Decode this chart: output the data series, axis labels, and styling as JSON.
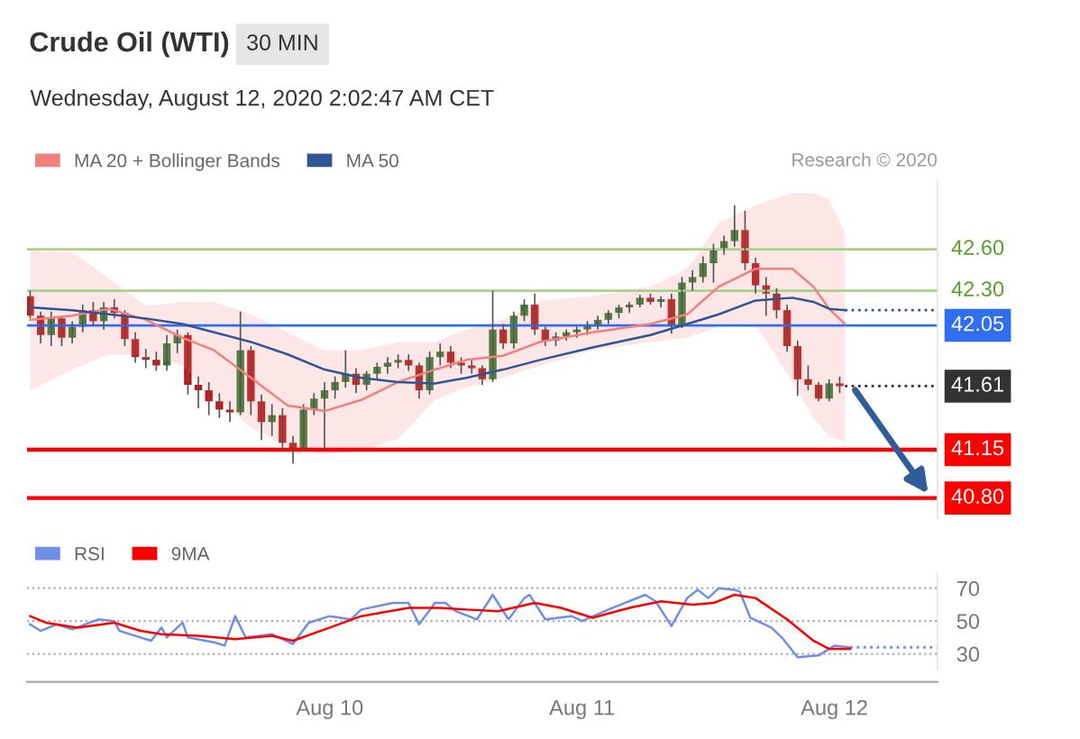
{
  "chart_data": [
    {
      "type": "candlestick",
      "title": "Crude Oil (WTI)",
      "subtitle": "30 MIN",
      "annotations": [
        "Wednesday, August 12, 2020 2:02:47 AM CET",
        "Research © 2020"
      ],
      "x": [
        "2020-08-08T19:30",
        "2020-08-08T20:30",
        "2020-08-08T21:30",
        "2020-08-08T22:30",
        "2020-08-08T23:30",
        "2020-08-09T00:30",
        "2020-08-09T01:30",
        "2020-08-09T02:30",
        "2020-08-09T03:30",
        "2020-08-09T04:30",
        "2020-08-09T05:30",
        "2020-08-09T06:30",
        "2020-08-09T07:30",
        "2020-08-09T08:30",
        "2020-08-09T09:30",
        "2020-08-09T10:30",
        "2020-08-09T11:30",
        "2020-08-09T12:30",
        "2020-08-09T13:30",
        "2020-08-09T14:30",
        "2020-08-09T15:30",
        "2020-08-09T16:30",
        "2020-08-09T17:30",
        "2020-08-09T18:30",
        "2020-08-09T19:30",
        "2020-08-09T20:30",
        "2020-08-09T21:30",
        "2020-08-09T22:30",
        "2020-08-09T23:30",
        "2020-08-10T00:30",
        "2020-08-10T01:30",
        "2020-08-10T02:30",
        "2020-08-10T03:30",
        "2020-08-10T04:30",
        "2020-08-10T05:30",
        "2020-08-10T06:30",
        "2020-08-10T07:30",
        "2020-08-10T08:30",
        "2020-08-10T09:30",
        "2020-08-10T10:30",
        "2020-08-10T11:30",
        "2020-08-10T12:30",
        "2020-08-10T13:30",
        "2020-08-10T14:30",
        "2020-08-10T15:30",
        "2020-08-10T16:30",
        "2020-08-10T17:30",
        "2020-08-10T18:30",
        "2020-08-10T19:30",
        "2020-08-10T20:30",
        "2020-08-10T21:30",
        "2020-08-10T22:30",
        "2020-08-10T23:30",
        "2020-08-11T00:30",
        "2020-08-11T01:30",
        "2020-08-11T02:30",
        "2020-08-11T03:30",
        "2020-08-11T04:30",
        "2020-08-11T05:30",
        "2020-08-11T06:30",
        "2020-08-11T07:30",
        "2020-08-11T08:30",
        "2020-08-11T09:30",
        "2020-08-11T10:30",
        "2020-08-11T11:30",
        "2020-08-11T12:30",
        "2020-08-11T13:30",
        "2020-08-11T14:30",
        "2020-08-11T15:30",
        "2020-08-11T16:30",
        "2020-08-11T17:30",
        "2020-08-11T18:30",
        "2020-08-11T19:30",
        "2020-08-11T20:30",
        "2020-08-11T21:30",
        "2020-08-11T22:30",
        "2020-08-11T23:30",
        "2020-08-12T00:30"
      ],
      "ohlc": [
        [
          42.26,
          42.3,
          42.1,
          42.12
        ],
        [
          42.12,
          42.15,
          41.92,
          41.98
        ],
        [
          41.98,
          42.15,
          41.9,
          42.1
        ],
        [
          42.1,
          42.12,
          41.9,
          41.96
        ],
        [
          41.96,
          42.08,
          41.92,
          42.04
        ],
        [
          42.04,
          42.2,
          42.0,
          42.16
        ],
        [
          42.16,
          42.22,
          42.05,
          42.08
        ],
        [
          42.08,
          42.22,
          42.02,
          42.18
        ],
        [
          42.18,
          42.24,
          42.1,
          42.14
        ],
        [
          42.14,
          42.16,
          41.9,
          41.95
        ],
        [
          41.95,
          42.0,
          41.78,
          41.82
        ],
        [
          41.82,
          41.88,
          41.74,
          41.8
        ],
        [
          41.8,
          41.86,
          41.72,
          41.76
        ],
        [
          41.76,
          41.98,
          41.72,
          41.92
        ],
        [
          41.92,
          42.02,
          41.85,
          41.98
        ],
        [
          41.98,
          42.0,
          41.55,
          41.62
        ],
        [
          41.62,
          41.68,
          41.45,
          41.58
        ],
        [
          41.58,
          41.64,
          41.4,
          41.5
        ],
        [
          41.5,
          41.56,
          41.38,
          41.44
        ],
        [
          41.44,
          41.5,
          41.35,
          41.42
        ],
        [
          41.42,
          42.15,
          41.4,
          41.87
        ],
        [
          41.87,
          41.9,
          41.4,
          41.5
        ],
        [
          41.5,
          41.55,
          41.22,
          41.35
        ],
        [
          41.35,
          41.48,
          41.25,
          41.4
        ],
        [
          41.4,
          41.45,
          41.15,
          41.2
        ],
        [
          41.2,
          41.25,
          41.05,
          41.15
        ],
        [
          41.15,
          41.48,
          41.14,
          41.44
        ],
        [
          41.44,
          41.56,
          41.4,
          41.52
        ],
        [
          41.52,
          41.64,
          41.15,
          41.58
        ],
        [
          41.58,
          41.68,
          41.52,
          41.64
        ],
        [
          41.64,
          41.87,
          41.6,
          41.7
        ],
        [
          41.7,
          41.74,
          41.56,
          41.62
        ],
        [
          41.62,
          41.72,
          41.58,
          41.7
        ],
        [
          41.7,
          41.78,
          41.66,
          41.75
        ],
        [
          41.75,
          41.82,
          41.7,
          41.78
        ],
        [
          41.78,
          41.84,
          41.74,
          41.8
        ],
        [
          41.8,
          41.84,
          41.72,
          41.76
        ],
        [
          41.76,
          41.78,
          41.52,
          41.58
        ],
        [
          41.58,
          41.86,
          41.55,
          41.82
        ],
        [
          41.82,
          41.92,
          41.76,
          41.86
        ],
        [
          41.86,
          41.9,
          41.74,
          41.78
        ],
        [
          41.78,
          41.82,
          41.7,
          41.76
        ],
        [
          41.76,
          41.8,
          41.7,
          41.74
        ],
        [
          41.74,
          41.76,
          41.62,
          41.66
        ],
        [
          41.66,
          42.3,
          41.64,
          42.02
        ],
        [
          42.02,
          42.06,
          41.88,
          41.92
        ],
        [
          41.92,
          42.15,
          41.88,
          42.12
        ],
        [
          42.12,
          42.24,
          42.08,
          42.2
        ],
        [
          42.2,
          42.28,
          41.98,
          42.02
        ],
        [
          42.02,
          42.04,
          41.9,
          41.94
        ],
        [
          41.94,
          42.0,
          41.9,
          41.97
        ],
        [
          41.97,
          42.02,
          41.94,
          42.0
        ],
        [
          42.0,
          42.04,
          41.96,
          42.02
        ],
        [
          42.02,
          42.08,
          41.98,
          42.05
        ],
        [
          42.05,
          42.12,
          42.02,
          42.09
        ],
        [
          42.09,
          42.16,
          42.06,
          42.14
        ],
        [
          42.14,
          42.2,
          42.1,
          42.18
        ],
        [
          42.18,
          42.22,
          42.14,
          42.2
        ],
        [
          42.2,
          42.27,
          42.18,
          42.25
        ],
        [
          42.25,
          42.28,
          42.2,
          42.22
        ],
        [
          42.22,
          42.26,
          42.18,
          42.24
        ],
        [
          42.24,
          42.28,
          41.99,
          42.05
        ],
        [
          42.05,
          42.4,
          42.03,
          42.36
        ],
        [
          42.36,
          42.45,
          42.3,
          42.4
        ],
        [
          42.4,
          42.55,
          42.36,
          42.5
        ],
        [
          42.5,
          42.64,
          42.36,
          42.6
        ],
        [
          42.6,
          42.7,
          42.56,
          42.66
        ],
        [
          42.66,
          42.92,
          42.62,
          42.74
        ],
        [
          42.74,
          42.88,
          42.45,
          42.5
        ],
        [
          42.5,
          42.54,
          42.28,
          42.34
        ],
        [
          42.34,
          42.4,
          42.12,
          42.28
        ],
        [
          42.28,
          42.32,
          42.1,
          42.16
        ],
        [
          42.16,
          42.2,
          41.86,
          41.9
        ],
        [
          41.9,
          41.94,
          41.54,
          41.66
        ],
        [
          41.66,
          41.76,
          41.58,
          41.62
        ],
        [
          41.62,
          41.64,
          41.5,
          41.52
        ],
        [
          41.52,
          41.66,
          41.5,
          41.63
        ],
        [
          41.63,
          41.68,
          41.56,
          41.61
        ]
      ],
      "series": [
        {
          "name": "MA 20 + Bollinger Bands",
          "type": "line",
          "color": "#f08080",
          "x": [
            "2020-08-08T19:30",
            "2020-08-08T23:30",
            "2020-08-09T03:00",
            "2020-08-09T06:30",
            "2020-08-09T10:00",
            "2020-08-09T13:00",
            "2020-08-09T16:30",
            "2020-08-09T20:00",
            "2020-08-09T23:30",
            "2020-08-10T03:00",
            "2020-08-10T06:30",
            "2020-08-10T10:00",
            "2020-08-10T13:00",
            "2020-08-10T16:30",
            "2020-08-10T20:00",
            "2020-08-11T01:00",
            "2020-08-11T06:30",
            "2020-08-11T10:00",
            "2020-08-11T13:00",
            "2020-08-11T16:30",
            "2020-08-11T20:00",
            "2020-08-11T22:00",
            "2020-08-11T23:30",
            "2020-08-12T01:00"
          ],
          "values": [
            42.09,
            42.12,
            42.17,
            42.09,
            41.96,
            41.87,
            41.67,
            41.47,
            41.43,
            41.51,
            41.64,
            41.73,
            41.8,
            41.83,
            41.93,
            42.0,
            42.06,
            42.13,
            42.33,
            42.46,
            42.46,
            42.33,
            42.17,
            42.06
          ],
          "upper": [
            42.59,
            42.58,
            42.39,
            42.19,
            42.22,
            42.22,
            42.13,
            42.0,
            41.87,
            41.87,
            41.93,
            41.93,
            42.02,
            42.09,
            42.23,
            42.26,
            42.33,
            42.46,
            42.79,
            42.92,
            43.01,
            43.01,
            42.96,
            42.72
          ],
          "lower": [
            41.58,
            41.73,
            41.84,
            41.83,
            41.76,
            41.54,
            41.31,
            41.17,
            41.12,
            41.14,
            41.23,
            41.51,
            41.6,
            41.67,
            41.76,
            41.87,
            41.93,
            41.96,
            42.04,
            42.06,
            41.64,
            41.38,
            41.25,
            41.21
          ]
        },
        {
          "name": "MA 50",
          "type": "line",
          "color": "#2f5597",
          "x": [
            "2020-08-08T19:30",
            "2020-08-08T23:30",
            "2020-08-09T03:00",
            "2020-08-09T06:30",
            "2020-08-09T10:00",
            "2020-08-09T13:00",
            "2020-08-09T16:30",
            "2020-08-09T20:00",
            "2020-08-09T23:30",
            "2020-08-10T03:00",
            "2020-08-10T06:30",
            "2020-08-10T10:00",
            "2020-08-10T13:00",
            "2020-08-10T16:30",
            "2020-08-10T20:00",
            "2020-08-11T01:00",
            "2020-08-11T06:30",
            "2020-08-11T10:00",
            "2020-08-11T13:00",
            "2020-08-11T16:30",
            "2020-08-11T20:00",
            "2020-08-11T22:00",
            "2020-08-11T23:30",
            "2020-08-12T01:00"
          ],
          "values": [
            42.18,
            42.16,
            42.13,
            42.1,
            42.06,
            42.0,
            41.93,
            41.84,
            41.73,
            41.67,
            41.64,
            41.63,
            41.67,
            41.73,
            41.8,
            41.89,
            41.98,
            42.06,
            42.13,
            42.23,
            42.25,
            42.22,
            42.17,
            42.16
          ]
        }
      ],
      "ref_lines": [
        {
          "axis": "y",
          "value": 42.6,
          "label": "42.60",
          "color": "#a9d18e",
          "line_style": "solid"
        },
        {
          "axis": "y",
          "value": 42.3,
          "label": "42.30",
          "color": "#a9d18e",
          "line_style": "solid"
        },
        {
          "axis": "y",
          "value": 42.16,
          "color": "#2f5597",
          "line_style": "dotted"
        },
        {
          "axis": "y",
          "value": 42.05,
          "label": "42.05",
          "color": "#2f6fef",
          "line_style": "solid"
        },
        {
          "axis": "y",
          "value": 41.61,
          "label": "41.61",
          "color": "#333333",
          "line_style": "dotted"
        },
        {
          "axis": "y",
          "value": 41.15,
          "label": "41.15",
          "color": "#ff0000",
          "line_style": "solid"
        },
        {
          "axis": "y",
          "value": 40.8,
          "label": "40.80",
          "color": "#ff0000",
          "line_style": "solid"
        }
      ],
      "xlim": [
        "2020-08-08T19:12",
        "2020-08-12T09:48"
      ],
      "ylim": [
        40.65,
        43.1
      ],
      "tick_labels": false,
      "legend": "top left"
    },
    {
      "type": "line",
      "x": [
        "2020-08-08T19:30",
        "2020-08-08T20:30",
        "2020-08-08T22:00",
        "2020-08-08T23:30",
        "2020-08-09T02:00",
        "2020-08-09T03:30",
        "2020-08-09T04:00",
        "2020-08-09T06:00",
        "2020-08-09T07:00",
        "2020-08-09T08:00",
        "2020-08-09T08:30",
        "2020-08-09T10:00",
        "2020-08-09T10:30",
        "2020-08-09T13:00",
        "2020-08-09T14:00",
        "2020-08-09T15:00",
        "2020-08-09T16:00",
        "2020-08-09T18:30",
        "2020-08-09T20:30",
        "2020-08-09T22:00",
        "2020-08-10T00:00",
        "2020-08-10T02:00",
        "2020-08-10T03:00",
        "2020-08-10T06:00",
        "2020-08-10T07:30",
        "2020-08-10T08:30",
        "2020-08-10T10:00",
        "2020-08-10T11:00",
        "2020-08-10T12:00",
        "2020-08-10T14:00",
        "2020-08-10T15:30",
        "2020-08-10T17:00",
        "2020-08-10T18:30",
        "2020-08-10T19:00",
        "2020-08-10T20:30",
        "2020-08-10T23:00",
        "2020-08-11T00:00",
        "2020-08-11T02:30",
        "2020-08-11T06:00",
        "2020-08-11T07:00",
        "2020-08-11T08:30",
        "2020-08-11T10:00",
        "2020-08-11T11:00",
        "2020-08-11T12:00",
        "2020-08-11T13:00",
        "2020-08-11T14:30",
        "2020-08-11T15:00",
        "2020-08-11T16:00",
        "2020-08-11T18:00",
        "2020-08-11T19:00",
        "2020-08-11T20:30",
        "2020-08-11T22:30",
        "2020-08-12T00:00",
        "2020-08-12T01:30"
      ],
      "series": [
        {
          "name": "RSI",
          "color": "#6f8fe6",
          "values": [
            48,
            44,
            48,
            45,
            51,
            50,
            44,
            40,
            38,
            46,
            40,
            49,
            40,
            37,
            35,
            53,
            40,
            42,
            36,
            49,
            53,
            51,
            57,
            61,
            61,
            48,
            61,
            61,
            56,
            51,
            66,
            51,
            64,
            66,
            51,
            53,
            50,
            57,
            66,
            62,
            47,
            64,
            69,
            64,
            70,
            69,
            68,
            52,
            46,
            40,
            28,
            29,
            35,
            34
          ]
        },
        {
          "name": "9MA",
          "color": "#ff0000",
          "x": [
            "2020-08-08T19:30",
            "2020-08-08T21:00",
            "2020-08-09T00:00",
            "2020-08-09T03:30",
            "2020-08-09T06:00",
            "2020-08-09T08:00",
            "2020-08-09T11:30",
            "2020-08-09T15:00",
            "2020-08-09T18:30",
            "2020-08-09T20:30",
            "2020-08-10T00:00",
            "2020-08-10T03:00",
            "2020-08-10T07:30",
            "2020-08-10T10:30",
            "2020-08-10T13:00",
            "2020-08-10T16:00",
            "2020-08-10T19:30",
            "2020-08-10T22:00",
            "2020-08-11T01:00",
            "2020-08-11T04:30",
            "2020-08-11T07:30",
            "2020-08-11T10:30",
            "2020-08-11T12:30",
            "2020-08-11T14:30",
            "2020-08-11T16:30",
            "2020-08-11T19:30",
            "2020-08-11T22:00",
            "2020-08-11T23:30",
            "2020-08-12T01:30"
          ],
          "values": [
            53,
            49,
            46,
            49,
            44,
            42,
            41,
            39,
            41,
            38,
            46,
            53,
            58,
            58,
            57,
            56,
            61,
            58,
            52,
            58,
            62,
            60,
            61,
            66,
            64,
            51,
            38,
            33,
            33
          ]
        }
      ],
      "ref_lines": [
        {
          "axis": "y",
          "value": 34,
          "color": "#6f8fe6",
          "line_style": "dotted"
        }
      ],
      "xlim": [
        "2020-08-08T19:12",
        "2020-08-12T09:48"
      ],
      "ylim": [
        20,
        79
      ],
      "yticks": [
        30,
        50,
        70
      ],
      "xticks": [
        {
          "value": "2020-08-10",
          "label": "Aug 10"
        },
        {
          "value": "2020-08-11",
          "label": "Aug 11"
        },
        {
          "value": "2020-08-12",
          "label": "Aug 12"
        }
      ],
      "grid": "y",
      "legend": "top left"
    }
  ]
}
